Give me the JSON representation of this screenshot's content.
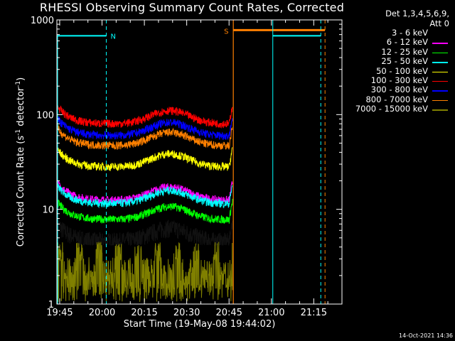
{
  "chart_data": {
    "type": "line",
    "title": "RHESSI Observing Summary Count Rates, Corrected",
    "xlabel": "Start Time (19-May-08 19:44:02)",
    "ylabel_parts": [
      "Corrected Count Rate (s",
      "-1",
      " detector",
      "-1",
      ")"
    ],
    "y_scale": "log",
    "ylim": [
      1,
      1000
    ],
    "xlim_minutes": [
      0,
      101
    ],
    "x_tick_labels": [
      "19:45",
      "20:00",
      "20:15",
      "20:30",
      "20:45",
      "21:00",
      "21:15"
    ],
    "x_tick_minutes": [
      1,
      16,
      31,
      46,
      61,
      76,
      91
    ],
    "y_tick_labels": [
      "1",
      "10",
      "100",
      "1000"
    ],
    "y_tick_values": [
      1,
      10,
      100,
      1000
    ],
    "legend_header": [
      "Det 1,3,4,5,6,9,",
      "Att 0"
    ],
    "series": [
      {
        "name": "3 - 6 keV",
        "color": "#000000",
        "base": 4.5
      },
      {
        "name": "6 - 12 keV",
        "color": "#ff00ff",
        "base": 12.5
      },
      {
        "name": "12 - 25 keV",
        "color": "#00ff00",
        "base": 7.8
      },
      {
        "name": "25 - 50 keV",
        "color": "#00ffff",
        "base": 11.5
      },
      {
        "name": "50 - 100 keV",
        "color": "#ffff00",
        "base": 28
      },
      {
        "name": "100 - 300 keV",
        "color": "#ff0000",
        "base": 80
      },
      {
        "name": "300 - 800 keV",
        "color": "#0000ff",
        "base": 60
      },
      {
        "name": "800 - 7000 keV",
        "color": "#ff8000",
        "base": 47
      },
      {
        "name": "7000 - 15000 keV",
        "color": "#808000",
        "base": 2
      }
    ],
    "annotations": {
      "night_label": "N",
      "saa_label": "S",
      "night_minutes": [
        0,
        17.5
      ],
      "saa_minutes": [
        62.5,
        95
      ],
      "day_minutes": [
        76.5,
        93.5
      ],
      "night_level": 680,
      "saa_level": 780
    },
    "timestamp": "14-Oct-2021 14:36"
  }
}
